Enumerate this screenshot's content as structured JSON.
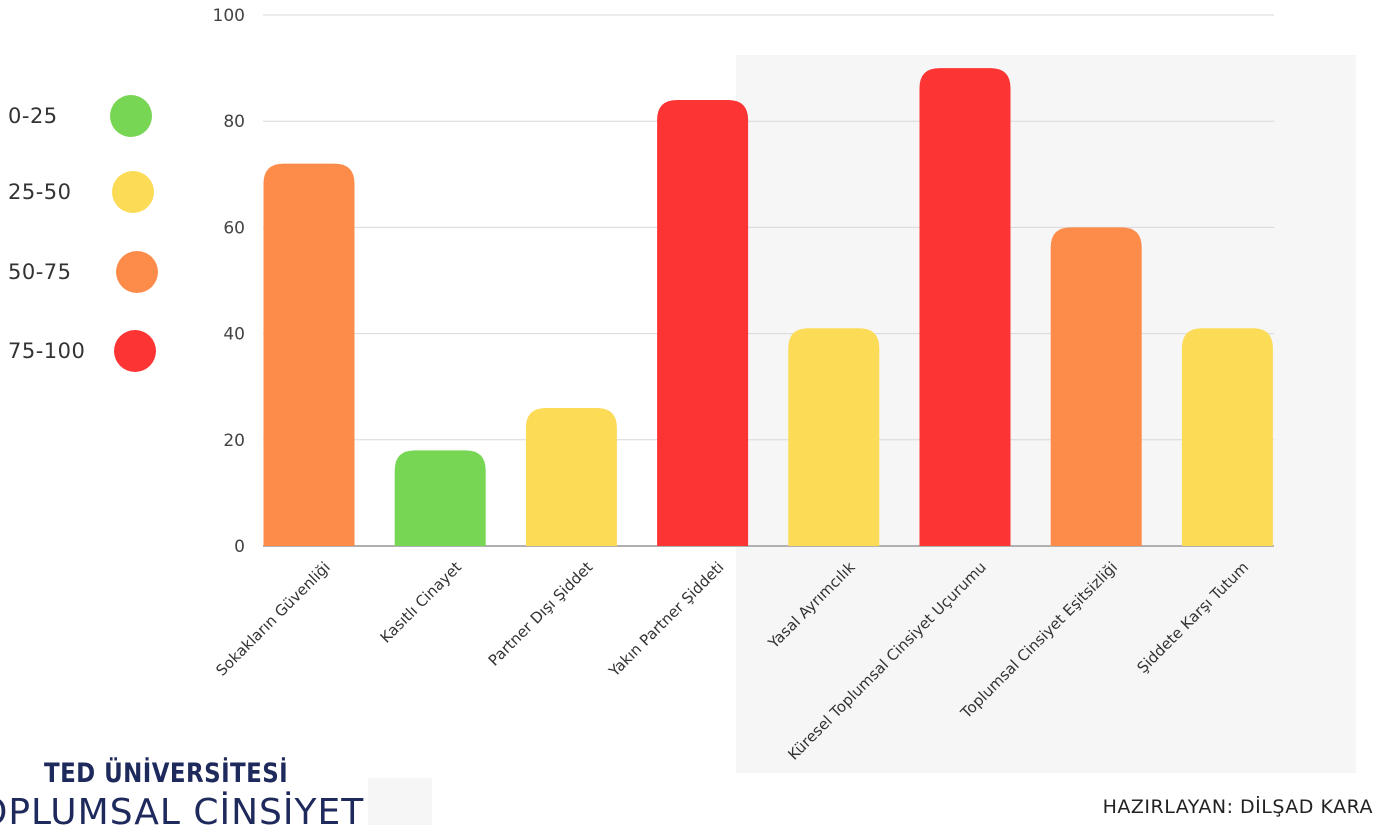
{
  "chart_data": {
    "type": "bar",
    "categories": [
      "Sokakların Güvenliği",
      "Kasıtlı Cinayet",
      "Partner Dışı Şiddet",
      "Yakın Partner Şiddeti",
      "Yasal Ayrımcılık",
      "Küresel Toplumsal Cinsiyet Uçurumu",
      "Toplumsal Cinsiyet Eşitsizliği",
      "Şiddete Karşı Tutum"
    ],
    "values": [
      72,
      18,
      26,
      84,
      41,
      90,
      60,
      41
    ],
    "ylim": [
      0,
      100
    ],
    "yticks": [
      "0",
      "20",
      "40",
      "60",
      "80",
      "100"
    ],
    "grid": true,
    "legend_position": "left",
    "colors": {
      "0-25": "#78d655",
      "25-50": "#fcdb56",
      "50-75": "#fd8c4a",
      "75-100": "#fc3434"
    }
  },
  "legend": [
    {
      "label": "0-25",
      "color": "#78d655"
    },
    {
      "label": "25-50",
      "color": "#fcdb56"
    },
    {
      "label": "50-75",
      "color": "#fd8c4a"
    },
    {
      "label": "75-100",
      "color": "#fc3434"
    }
  ],
  "logo": {
    "line1": "TED ÜNİVERSİTESİ",
    "line2": "TOPLUMSAL CİNSİYET"
  },
  "author": "HAZIRLAYAN: DİLŞAD KARA"
}
